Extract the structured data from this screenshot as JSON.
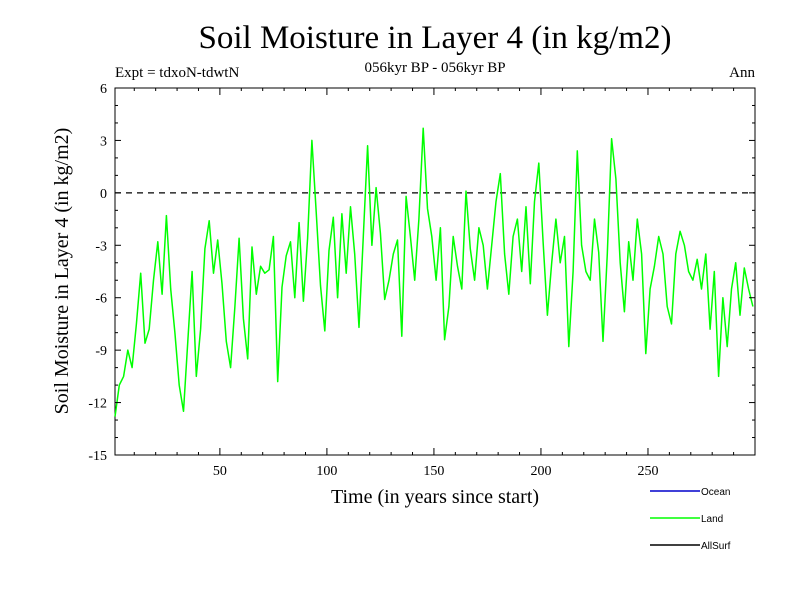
{
  "header": {
    "title": "Soil Moisture in Layer 4 (in kg/m2)",
    "experiment": "Expt = tdxoN-tdwtN",
    "period": "056kyr BP - 056kyr BP",
    "season": "Ann"
  },
  "chart_data": {
    "type": "line",
    "title": "Soil Moisture in Layer 4 (in kg/m2)",
    "xlabel": "Time (in years since start)",
    "ylabel": "Soil Moisture in Layer 4 (in kg/m2)",
    "xlim": [
      1,
      300
    ],
    "ylim": [
      -15,
      6
    ],
    "xticks": [
      50,
      100,
      150,
      200,
      250
    ],
    "yticks": [
      6,
      3,
      0,
      -3,
      -6,
      -9,
      -12,
      -15
    ],
    "zero_line": {
      "value": 0,
      "style": "dashed",
      "color": "#000000"
    },
    "grid": false,
    "legend_position": "bottom-right, below plot",
    "legend": [
      {
        "name": "Ocean",
        "color": "#0000cc"
      },
      {
        "name": "Land",
        "color": "#00ff00"
      },
      {
        "name": "AllSurf",
        "color": "#000000"
      }
    ],
    "series": [
      {
        "name": "Land",
        "color": "#00ff00",
        "x": [
          1,
          3,
          5,
          7,
          9,
          11,
          13,
          15,
          17,
          19,
          21,
          23,
          25,
          27,
          29,
          31,
          33,
          35,
          37,
          39,
          41,
          43,
          45,
          47,
          49,
          51,
          53,
          55,
          57,
          59,
          61,
          63,
          65,
          67,
          69,
          71,
          73,
          75,
          77,
          79,
          81,
          83,
          85,
          87,
          89,
          91,
          93,
          95,
          97,
          99,
          101,
          103,
          105,
          107,
          109,
          111,
          113,
          115,
          117,
          119,
          121,
          123,
          125,
          127,
          129,
          131,
          133,
          135,
          137,
          139,
          141,
          143,
          145,
          147,
          149,
          151,
          153,
          155,
          157,
          159,
          161,
          163,
          165,
          167,
          169,
          171,
          173,
          175,
          177,
          179,
          181,
          183,
          185,
          187,
          189,
          191,
          193,
          195,
          197,
          199,
          201,
          203,
          205,
          207,
          209,
          211,
          213,
          215,
          217,
          219,
          221,
          223,
          225,
          227,
          229,
          231,
          233,
          235,
          237,
          239,
          241,
          243,
          245,
          247,
          249,
          251,
          253,
          255,
          257,
          259,
          261,
          263,
          265,
          267,
          269,
          271,
          273,
          275,
          277,
          279,
          281,
          283,
          285,
          287,
          289,
          291,
          293,
          295,
          297,
          299
        ],
        "values": [
          -12.8,
          -11.0,
          -10.5,
          -9.0,
          -10.0,
          -7.5,
          -4.6,
          -8.6,
          -7.8,
          -5.0,
          -2.8,
          -5.8,
          -1.3,
          -5.5,
          -8.0,
          -11.0,
          -12.5,
          -8.5,
          -4.5,
          -10.5,
          -7.8,
          -3.2,
          -1.6,
          -4.6,
          -2.7,
          -5.2,
          -8.5,
          -10.0,
          -6.5,
          -2.6,
          -7.2,
          -9.5,
          -3.1,
          -5.8,
          -4.2,
          -4.6,
          -4.4,
          -2.5,
          -10.8,
          -5.4,
          -3.6,
          -2.8,
          -6.0,
          -1.7,
          -6.2,
          -2.6,
          3.0,
          -1.1,
          -5.3,
          -7.9,
          -3.3,
          -1.4,
          -6.0,
          -1.2,
          -4.6,
          -0.8,
          -3.5,
          -7.7,
          -2.5,
          2.7,
          -3.0,
          0.3,
          -2.3,
          -6.1,
          -5.0,
          -3.5,
          -2.7,
          -8.2,
          -0.2,
          -2.5,
          -5.0,
          -1.5,
          3.7,
          -0.9,
          -2.5,
          -5.0,
          -2.0,
          -8.4,
          -6.5,
          -2.5,
          -4.2,
          -5.5,
          0.1,
          -3.2,
          -5.0,
          -2.0,
          -3.0,
          -5.5,
          -3.0,
          -0.5,
          1.1,
          -3.5,
          -5.8,
          -2.5,
          -1.5,
          -4.5,
          -0.8,
          -5.2,
          -0.5,
          1.7,
          -2.8,
          -7.0,
          -4.0,
          -1.5,
          -4.0,
          -2.5,
          -8.8,
          -4.5,
          2.4,
          -3.0,
          -4.5,
          -5.0,
          -1.5,
          -3.4,
          -8.5,
          -3.5,
          3.1,
          0.8,
          -4.0,
          -6.8,
          -2.8,
          -5.0,
          -1.5,
          -3.5,
          -9.2,
          -5.5,
          -4.2,
          -2.5,
          -3.5,
          -6.5,
          -7.5,
          -3.5,
          -2.2,
          -3.0,
          -4.5,
          -5.0,
          -3.8,
          -5.5,
          -3.5,
          -7.8,
          -4.5,
          -10.5,
          -6.0,
          -8.8,
          -5.5,
          -4.0,
          -7.0,
          -4.3,
          -5.5,
          -6.5
        ]
      },
      {
        "name": "Ocean",
        "color": "#0000cc",
        "values": []
      },
      {
        "name": "AllSurf",
        "color": "#000000",
        "values": []
      }
    ]
  }
}
